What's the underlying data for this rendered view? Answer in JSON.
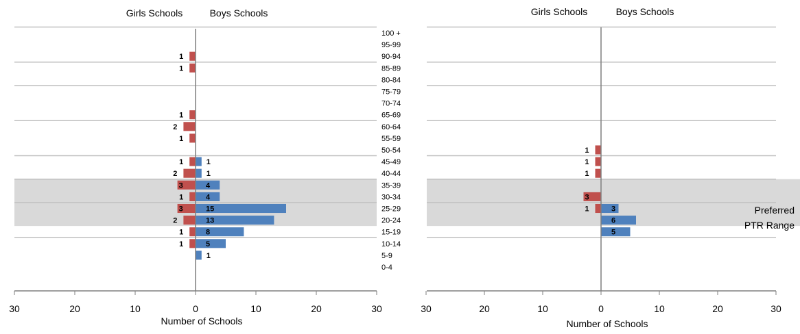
{
  "colors": {
    "girls": "#c0504d",
    "boys": "#4f81bd",
    "band": "#d9d9d9",
    "grid": "#bfbfbf",
    "axis": "#7f7f7f",
    "text": "#000000"
  },
  "shared_category_labels": [
    "0-4",
    "5-9",
    "10-14",
    "15-19",
    "20-24",
    "25-29",
    "30-34",
    "35-39",
    "40-44",
    "45-49",
    "50-54",
    "55-59",
    "60-64",
    "65-69",
    "70-74",
    "75-79",
    "80-84",
    "85-89",
    "90-94",
    "95-99",
    "100 +"
  ],
  "chart_data": [
    {
      "type": "bar",
      "orientation": "horizontal-diverging",
      "header_left": "Girls Schools",
      "header_right": "Boys Schools",
      "xlabel": "Number of Schools",
      "xlim": [
        -30,
        30
      ],
      "x_ticks": [
        "30",
        "20",
        "10",
        "0",
        "10",
        "20",
        "30"
      ],
      "categories": [
        "0-4",
        "5-9",
        "10-14",
        "15-19",
        "20-24",
        "25-29",
        "30-34",
        "35-39",
        "40-44",
        "45-49",
        "50-54",
        "55-59",
        "60-64",
        "65-69",
        "70-74",
        "75-79",
        "80-84",
        "85-89",
        "90-94",
        "95-99",
        "100 +"
      ],
      "series": [
        {
          "name": "Girls Schools",
          "values": [
            0,
            0,
            1,
            1,
            2,
            3,
            1,
            3,
            2,
            1,
            0,
            1,
            2,
            1,
            0,
            0,
            0,
            1,
            1,
            0,
            0
          ]
        },
        {
          "name": "Boys Schools",
          "values": [
            0,
            1,
            5,
            8,
            13,
            15,
            4,
            4,
            1,
            1,
            0,
            0,
            0,
            0,
            0,
            0,
            0,
            0,
            0,
            0,
            0
          ]
        }
      ],
      "highlight_band": {
        "from": "20-24",
        "to": "35-39"
      },
      "grid": true
    },
    {
      "type": "bar",
      "orientation": "horizontal-diverging",
      "header_left": "Girls Schools",
      "header_right": "Boys Schools",
      "xlabel": "Number of Schools",
      "xlim": [
        -30,
        30
      ],
      "x_ticks": [
        "30",
        "20",
        "10",
        "0",
        "10",
        "20",
        "30"
      ],
      "categories": [
        "0-4",
        "5-9",
        "10-14",
        "15-19",
        "20-24",
        "25-29",
        "30-34",
        "35-39",
        "40-44",
        "45-49",
        "50-54",
        "55-59",
        "60-64",
        "65-69",
        "70-74",
        "75-79",
        "80-84",
        "85-89",
        "90-94",
        "95-99",
        "100 +"
      ],
      "series": [
        {
          "name": "Girls Schools",
          "values": [
            0,
            0,
            0,
            0,
            0,
            1,
            3,
            0,
            1,
            1,
            1,
            0,
            0,
            0,
            0,
            0,
            0,
            0,
            0,
            0,
            0
          ]
        },
        {
          "name": "Boys Schools",
          "values": [
            0,
            0,
            0,
            5,
            6,
            3,
            0,
            0,
            0,
            0,
            0,
            0,
            0,
            0,
            0,
            0,
            0,
            0,
            0,
            0,
            0
          ]
        }
      ],
      "highlight_band": {
        "from": "20-24",
        "to": "35-39"
      },
      "band_label": "Preferred PTR Range",
      "grid": true
    }
  ]
}
